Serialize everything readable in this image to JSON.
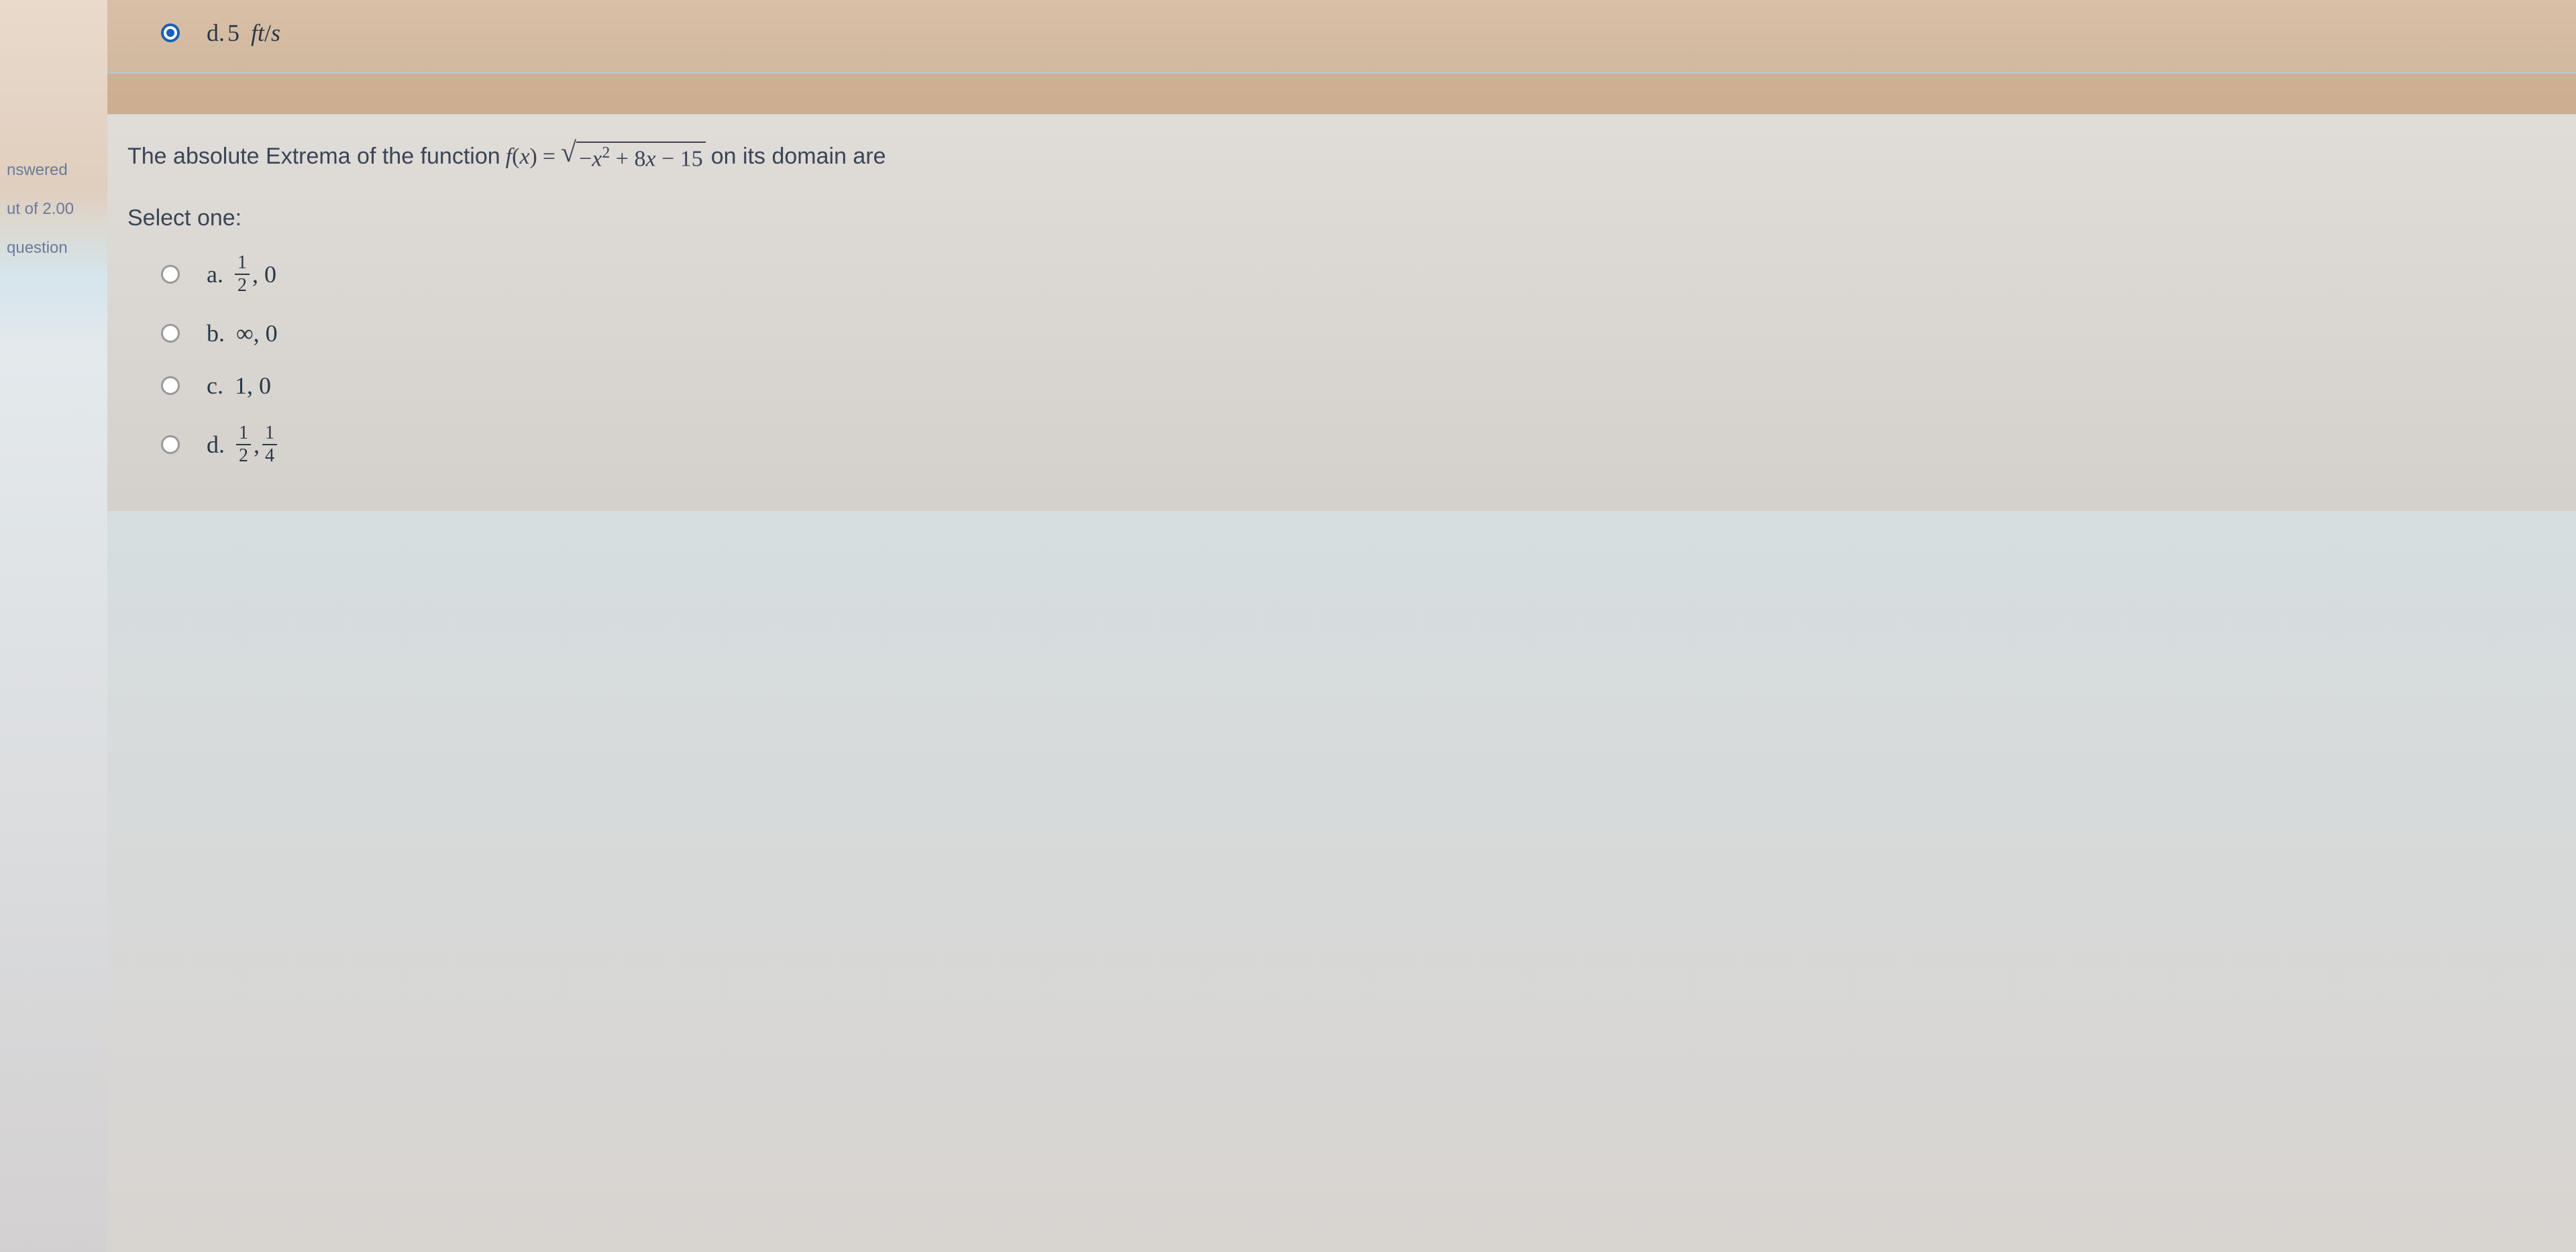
{
  "previous_question": {
    "option_d": {
      "letter": "d.",
      "value": "5",
      "unit": "ft/s",
      "selected": true
    }
  },
  "sidebar": {
    "answered": "nswered",
    "out_of": "ut of 2.00",
    "question": "question"
  },
  "question": {
    "prefix": "The absolute Extrema of the function",
    "func": "f",
    "var": "x",
    "equals": " = ",
    "under_sqrt_neg": "−",
    "under_sqrt_var": "x",
    "under_sqrt_exp": "2",
    "under_sqrt_plus": " + 8",
    "under_sqrt_var2": "x",
    "under_sqrt_minus": " − 15",
    "suffix": "on its domain are"
  },
  "select_label": "Select one:",
  "options": {
    "a": {
      "letter": "a.",
      "frac_num": "1",
      "frac_den": "2",
      "rest": ", 0"
    },
    "b": {
      "letter": "b.",
      "text": "∞, 0"
    },
    "c": {
      "letter": "c.",
      "text": "1, 0"
    },
    "d": {
      "letter": "d.",
      "frac1_num": "1",
      "frac1_den": "2",
      "comma": ", ",
      "frac2_num": "1",
      "frac2_den": "4"
    }
  },
  "colors": {
    "radio_selected": "#1a5fb4",
    "text_primary": "#3a4555",
    "text_sidebar": "#6b7a99"
  }
}
